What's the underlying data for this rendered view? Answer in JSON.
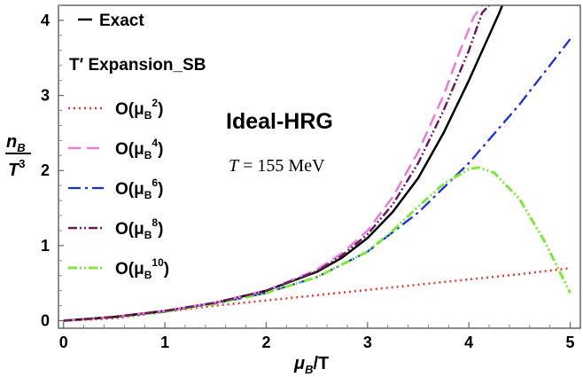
{
  "chart_data": {
    "type": "line",
    "title": "",
    "xlabel": {
      "main": "μ",
      "sub": "B",
      "tail": "/T"
    },
    "ylabel": {
      "num_main": "n",
      "num_sub": "B",
      "den_main": "T",
      "den_sup": "3"
    },
    "xlim": [
      -0.05,
      5.1
    ],
    "ylim": [
      -0.1,
      4.2
    ],
    "xticks": [
      "0",
      "1",
      "2",
      "3",
      "4",
      "5"
    ],
    "yticks": [
      "0",
      "1",
      "2",
      "3",
      "4"
    ],
    "grid": false,
    "legend_placement": "top-left",
    "legend": {
      "exact_label": "Exact",
      "expansion_header": "T′ Expansion_SB",
      "orders": [
        {
          "prefix": "O(μ",
          "sub": "B",
          "sup": "2",
          "suffix": ")"
        },
        {
          "prefix": "O(μ",
          "sub": "B",
          "sup": "4",
          "suffix": ")"
        },
        {
          "prefix": "O(μ",
          "sub": "B",
          "sup": "6",
          "suffix": ")"
        },
        {
          "prefix": "O(μ",
          "sub": "B",
          "sup": "8",
          "suffix": ")"
        },
        {
          "prefix": "O(μ",
          "sub": "B",
          "sup": "10",
          "suffix": ")"
        }
      ]
    },
    "annotations": {
      "model": "Ideal-HRG",
      "temperature": {
        "var": "T",
        "rest": " = 155 MeV"
      }
    },
    "series": [
      {
        "key": "exact",
        "color": "#000000",
        "dash": "",
        "width": 2.5,
        "x": [
          0,
          0.5,
          1,
          1.5,
          2,
          2.5,
          2.75,
          3,
          3.25,
          3.5,
          3.75,
          4,
          4.1,
          4.2,
          4.3,
          4.33
        ],
        "y": [
          0,
          0.05,
          0.13,
          0.24,
          0.4,
          0.65,
          0.84,
          1.1,
          1.45,
          1.9,
          2.5,
          3.2,
          3.5,
          3.8,
          4.1,
          4.2
        ]
      },
      {
        "key": "o2",
        "color": "#e8382a",
        "dash": "2,4",
        "width": 2.5,
        "x": [
          0,
          0.5,
          1,
          1.5,
          2,
          2.5,
          3,
          3.5,
          4,
          4.5,
          5
        ],
        "y": [
          0,
          0.03,
          0.12,
          0.2,
          0.27,
          0.34,
          0.41,
          0.48,
          0.55,
          0.62,
          0.7
        ]
      },
      {
        "key": "o4",
        "color": "#e87ae0",
        "dash": "14,7",
        "width": 2.5,
        "x": [
          0,
          0.5,
          1,
          1.5,
          2,
          2.5,
          2.75,
          3,
          3.25,
          3.5,
          3.75,
          3.9,
          4.05,
          4.13
        ],
        "y": [
          0,
          0.05,
          0.13,
          0.24,
          0.4,
          0.68,
          0.9,
          1.2,
          1.65,
          2.25,
          3.0,
          3.55,
          4.05,
          4.2
        ]
      },
      {
        "key": "o6",
        "color": "#1a2fd6",
        "dash": "14,5,3,5",
        "width": 2.3,
        "x": [
          0,
          0.5,
          1,
          1.5,
          2,
          2.5,
          3,
          3.5,
          4,
          4.5,
          5
        ],
        "y": [
          0,
          0.05,
          0.12,
          0.23,
          0.37,
          0.58,
          0.92,
          1.44,
          2.1,
          2.88,
          3.75
        ]
      },
      {
        "key": "o8",
        "color": "#6a1a5c",
        "dash": "10,3,2,3,2,3",
        "width": 2.5,
        "x": [
          0,
          0.5,
          1,
          1.5,
          2,
          2.5,
          2.75,
          3,
          3.25,
          3.5,
          3.75,
          4,
          4.13,
          4.2
        ],
        "y": [
          0,
          0.05,
          0.13,
          0.24,
          0.4,
          0.66,
          0.87,
          1.15,
          1.55,
          2.1,
          2.8,
          3.6,
          4.1,
          4.2
        ]
      },
      {
        "key": "o10",
        "color": "#7ee83a",
        "dash": "10,3,2,3,2,3",
        "width": 3,
        "x": [
          0,
          0.5,
          1,
          1.5,
          2,
          2.5,
          3,
          3.25,
          3.5,
          3.75,
          4,
          4.1,
          4.25,
          4.5,
          4.75,
          5
        ],
        "y": [
          0,
          0.05,
          0.12,
          0.23,
          0.37,
          0.58,
          0.92,
          1.2,
          1.52,
          1.82,
          2.02,
          2.04,
          1.97,
          1.62,
          1.05,
          0.37
        ]
      }
    ]
  }
}
